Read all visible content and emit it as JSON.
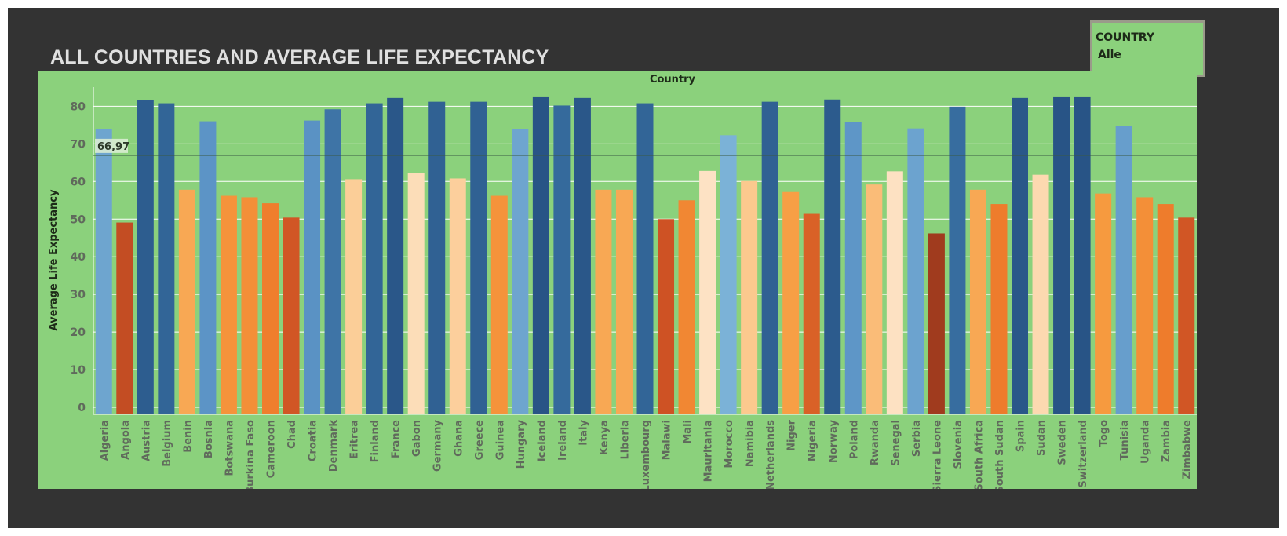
{
  "dashboard": {
    "title": "ALL COUNTRIES AND AVERAGE LIFE EXPECTANCY",
    "filter": {
      "label": "COUNTRY",
      "value": "Alle"
    }
  },
  "colors": {
    "background": "#333333",
    "chart_background": "#8bd17c",
    "title_text": "#e0e0e0",
    "axis_text": "#606a5c",
    "gridline": "#ffffff",
    "reference_line": "#3a5a45"
  },
  "chart_data": {
    "type": "bar",
    "title": "",
    "xlabel": "Country",
    "ylabel": "Average Life Expectancy",
    "ylim": [
      0,
      85
    ],
    "yticks": [
      0,
      10,
      20,
      30,
      40,
      50,
      60,
      70,
      80
    ],
    "grid": true,
    "reference_line": {
      "value": 66.97,
      "label": "66,97"
    },
    "color_scale": "diverging orange-blue by value",
    "categories": [
      "Algeria",
      "Angola",
      "Austria",
      "Belgium",
      "Benin",
      "Bosnia",
      "Botswana",
      "Burkina Faso",
      "Cameroon",
      "Chad",
      "Croatia",
      "Denmark",
      "Eritrea",
      "Finland",
      "France",
      "Gabon",
      "Germany",
      "Ghana",
      "Greece",
      "Guinea",
      "Hungary",
      "Iceland",
      "Ireland",
      "Italy",
      "Kenya",
      "Liberia",
      "Luxembourg",
      "Malawi",
      "Mali",
      "Mauritania",
      "Morocco",
      "Namibia",
      "Netherlands",
      "Niger",
      "Nigeria",
      "Norway",
      "Poland",
      "Rwanda",
      "Senegal",
      "Serbia",
      "Sierra Leone",
      "Slovenia",
      "South Africa",
      "South Sudan",
      "Spain",
      "Sudan",
      "Sweden",
      "Switzerland",
      "Togo",
      "Tunisia",
      "Uganda",
      "Zambia",
      "Zimbabwe"
    ],
    "values": [
      73.9,
      49.1,
      81.6,
      80.8,
      57.8,
      76.0,
      56.2,
      55.8,
      54.2,
      50.4,
      76.2,
      79.2,
      60.6,
      80.8,
      82.2,
      62.2,
      81.2,
      60.8,
      81.2,
      56.2,
      73.9,
      82.6,
      80.2,
      82.2,
      57.8,
      57.8,
      80.8,
      50.0,
      55.0,
      62.8,
      72.3,
      60.1,
      81.2,
      57.2,
      51.4,
      81.8,
      75.8,
      59.2,
      62.7,
      74.1,
      46.2,
      79.9,
      57.8,
      54.0,
      82.2,
      61.8,
      82.6,
      82.6,
      56.8,
      74.7,
      55.8,
      54.0,
      50.4
    ]
  }
}
